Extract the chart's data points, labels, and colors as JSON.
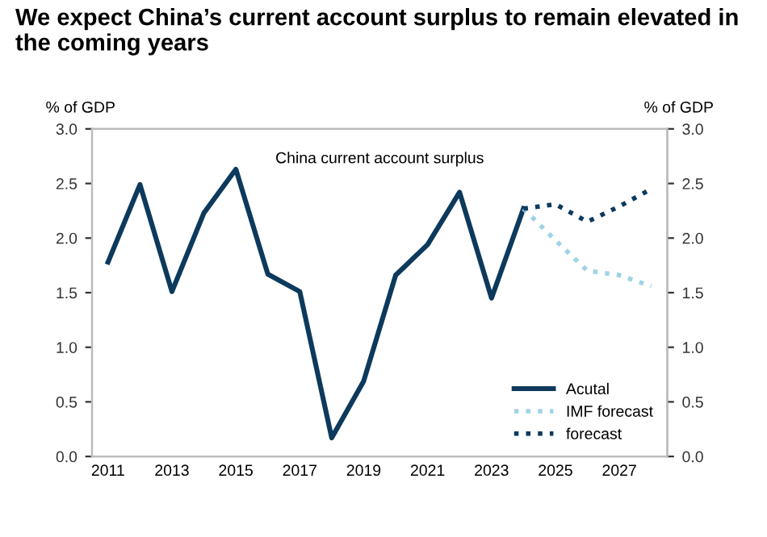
{
  "chart_data": {
    "type": "line",
    "title": "We expect China’s current account surplus to remain elevated in the coming years",
    "ylabel": "% of GDP",
    "y2label": "% of GDP",
    "annotations": [
      "China current account surplus"
    ],
    "categories": [
      "2011",
      null,
      "2013",
      null,
      "2015",
      null,
      "2017",
      null,
      "2019",
      null,
      "2021",
      null,
      "2023",
      null,
      "2025",
      null,
      "2027",
      null
    ],
    "series": [
      {
        "name": "Acutal",
        "color": "#0d3a5c",
        "line_style": "solid",
        "values": [
          1.78,
          2.49,
          1.51,
          2.23,
          2.63,
          1.67,
          1.51,
          0.17,
          0.69,
          1.66,
          1.94,
          2.42,
          1.45,
          2.27,
          null,
          null,
          null,
          null
        ]
      },
      {
        "name": "IMF forecast",
        "color": "#9fd3e6",
        "line_style": "dotted",
        "values": [
          null,
          null,
          null,
          null,
          null,
          null,
          null,
          null,
          null,
          null,
          null,
          null,
          null,
          2.27,
          1.98,
          1.7,
          1.66,
          1.56
        ]
      },
      {
        "name": "forecast",
        "color": "#0d3a5c",
        "line_style": "dotted",
        "values": [
          null,
          null,
          null,
          null,
          null,
          null,
          null,
          null,
          null,
          null,
          null,
          null,
          null,
          2.27,
          2.31,
          2.15,
          2.29,
          2.45
        ]
      }
    ],
    "ylim": [
      0,
      3
    ],
    "yticks": [
      {
        "value": 0,
        "label": "0.0"
      },
      0.5,
      {
        "value": 1,
        "label": "1.0"
      },
      1.5,
      {
        "value": 2,
        "label": "2.0"
      },
      2.5,
      {
        "value": 3,
        "label": "3.0"
      }
    ],
    "y2lim": [
      0,
      3
    ],
    "y2ticks": [
      {
        "value": 0,
        "label": "0.0"
      },
      0.5,
      {
        "value": 1,
        "label": "1.0"
      },
      1.5,
      {
        "value": 2,
        "label": "2.0"
      },
      2.5,
      {
        "value": 3,
        "label": "3.0"
      }
    ],
    "legend": "bottom right",
    "grid": false
  }
}
